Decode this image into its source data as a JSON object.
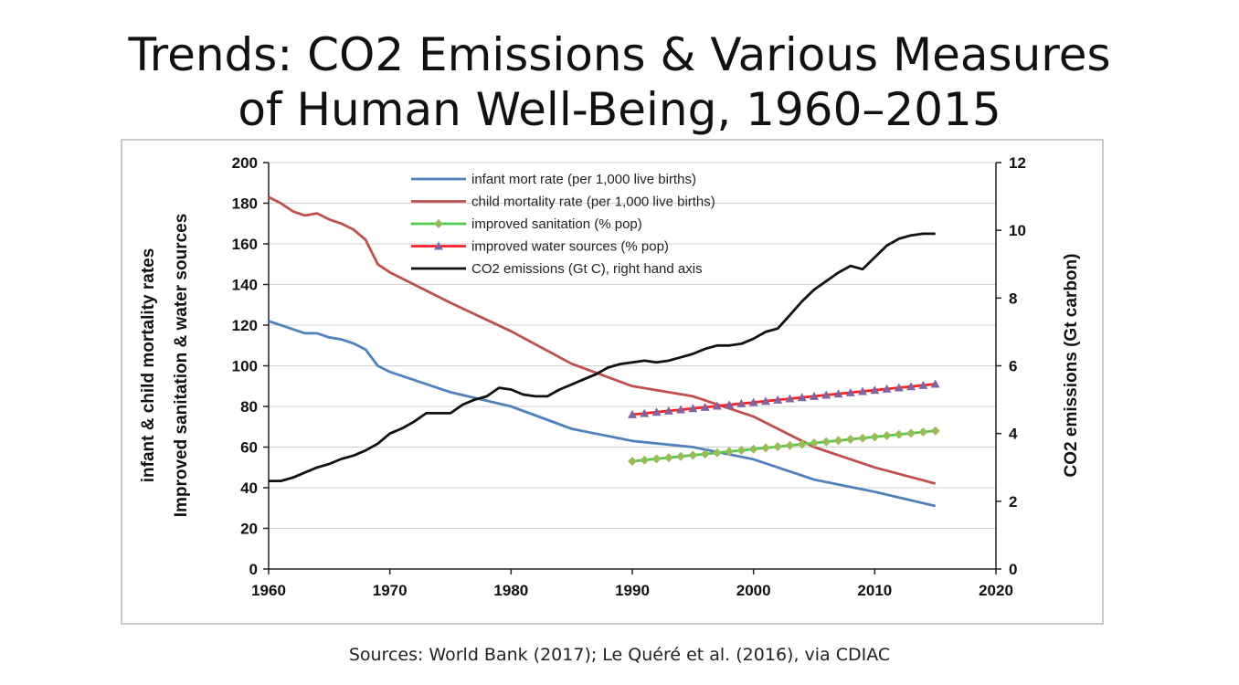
{
  "slide": {
    "title_line1": "Trends: CO2 Emissions & Various Measures",
    "title_line2": "of Human Well-Being, 1960–2015",
    "sources": "Sources: World Bank (2017); Le Quéré et al. (2016), via CDIAC"
  },
  "chart_data": {
    "type": "line",
    "title": "Trends: CO2 Emissions & Various Measures of Human Well-Being, 1960–2015",
    "ylabel_left_line1": "infant & child mortality rates",
    "ylabel_left_line2": "Improved sanitation & water sources",
    "ylabel_right": "CO2 emissions (Gt carbon)",
    "xlim": [
      1960,
      2020
    ],
    "ylim_left": [
      0,
      200
    ],
    "ylim_right": [
      0,
      12
    ],
    "x_ticks": [
      "1960",
      "1970",
      "1980",
      "1990",
      "2000",
      "2010",
      "2020"
    ],
    "y_ticks_left": [
      "0",
      "20",
      "40",
      "60",
      "80",
      "100",
      "120",
      "140",
      "160",
      "180",
      "200"
    ],
    "y_ticks_right": [
      "0",
      "2",
      "4",
      "6",
      "8",
      "10",
      "12"
    ],
    "grid": "horizontal",
    "legend_position": "top-center",
    "series": [
      {
        "name": "infant mort rate (per 1,000 live births)",
        "axis": "left",
        "color": "#4f81bd",
        "marker": "none",
        "x": [
          1960,
          1962,
          1963,
          1964,
          1965,
          1966,
          1967,
          1968,
          1969,
          1970,
          1972,
          1975,
          1980,
          1985,
          1990,
          1995,
          2000,
          2005,
          2010,
          2015
        ],
        "y": [
          122,
          118,
          116,
          116,
          114,
          113,
          111,
          108,
          100,
          97,
          93,
          87,
          80,
          69,
          63,
          60,
          54,
          44,
          38,
          31
        ]
      },
      {
        "name": "child mortality rate (per 1,000 live births)",
        "axis": "left",
        "color": "#c0504d",
        "marker": "none",
        "x": [
          1960,
          1961,
          1962,
          1963,
          1964,
          1965,
          1966,
          1967,
          1968,
          1969,
          1970,
          1972,
          1975,
          1980,
          1985,
          1990,
          1995,
          2000,
          2005,
          2010,
          2015
        ],
        "y": [
          183,
          180,
          176,
          174,
          175,
          172,
          170,
          167,
          162,
          150,
          146,
          140,
          131,
          117,
          101,
          90,
          85,
          75,
          60,
          50,
          42
        ]
      },
      {
        "name": "improved sanitation (% pop)",
        "axis": "left",
        "color": "#4ccc4c",
        "marker_color": "#9bbb59",
        "marker": "diamond",
        "x": [
          1990,
          1991,
          1992,
          1993,
          1994,
          1995,
          1996,
          1997,
          1998,
          1999,
          2000,
          2001,
          2002,
          2003,
          2004,
          2005,
          2006,
          2007,
          2008,
          2009,
          2010,
          2011,
          2012,
          2013,
          2014,
          2015
        ],
        "y": [
          53,
          53.6,
          54.2,
          54.8,
          55.4,
          56,
          56.6,
          57.2,
          57.8,
          58.4,
          59,
          59.6,
          60.2,
          60.8,
          61.4,
          62,
          62.6,
          63.2,
          63.8,
          64.4,
          65,
          65.6,
          66.2,
          66.8,
          67.4,
          68
        ]
      },
      {
        "name": "improved water sources (% pop)",
        "axis": "left",
        "color": "#ff2020",
        "marker_color": "#8064a2",
        "marker": "triangle",
        "x": [
          1990,
          1991,
          1992,
          1993,
          1994,
          1995,
          1996,
          1997,
          1998,
          1999,
          2000,
          2001,
          2002,
          2003,
          2004,
          2005,
          2006,
          2007,
          2008,
          2009,
          2010,
          2011,
          2012,
          2013,
          2014,
          2015
        ],
        "y": [
          76,
          76.6,
          77.2,
          77.8,
          78.4,
          79,
          79.6,
          80.2,
          80.8,
          81.4,
          82,
          82.6,
          83.2,
          83.8,
          84.4,
          85,
          85.6,
          86.2,
          86.8,
          87.4,
          88,
          88.6,
          89.2,
          89.8,
          90.4,
          91
        ]
      },
      {
        "name": "CO2 emissions (Gt C), right hand axis",
        "axis": "right",
        "color": "#111111",
        "marker": "none",
        "x": [
          1960,
          1961,
          1962,
          1963,
          1964,
          1965,
          1966,
          1967,
          1968,
          1969,
          1970,
          1971,
          1972,
          1973,
          1974,
          1975,
          1976,
          1977,
          1978,
          1979,
          1980,
          1981,
          1982,
          1983,
          1984,
          1985,
          1986,
          1987,
          1988,
          1989,
          1990,
          1991,
          1992,
          1993,
          1994,
          1995,
          1996,
          1997,
          1998,
          1999,
          2000,
          2001,
          2002,
          2003,
          2004,
          2005,
          2006,
          2007,
          2008,
          2009,
          2010,
          2011,
          2012,
          2013,
          2014,
          2015
        ],
        "y": [
          2.6,
          2.6,
          2.7,
          2.85,
          3.0,
          3.1,
          3.25,
          3.35,
          3.5,
          3.7,
          4.0,
          4.15,
          4.35,
          4.6,
          4.6,
          4.6,
          4.85,
          5.0,
          5.1,
          5.35,
          5.3,
          5.15,
          5.1,
          5.1,
          5.3,
          5.45,
          5.6,
          5.75,
          5.95,
          6.05,
          6.1,
          6.15,
          6.1,
          6.15,
          6.25,
          6.35,
          6.5,
          6.6,
          6.6,
          6.65,
          6.8,
          7.0,
          7.1,
          7.5,
          7.9,
          8.25,
          8.5,
          8.75,
          8.95,
          8.85,
          9.2,
          9.55,
          9.75,
          9.85,
          9.9,
          9.9
        ]
      }
    ]
  }
}
